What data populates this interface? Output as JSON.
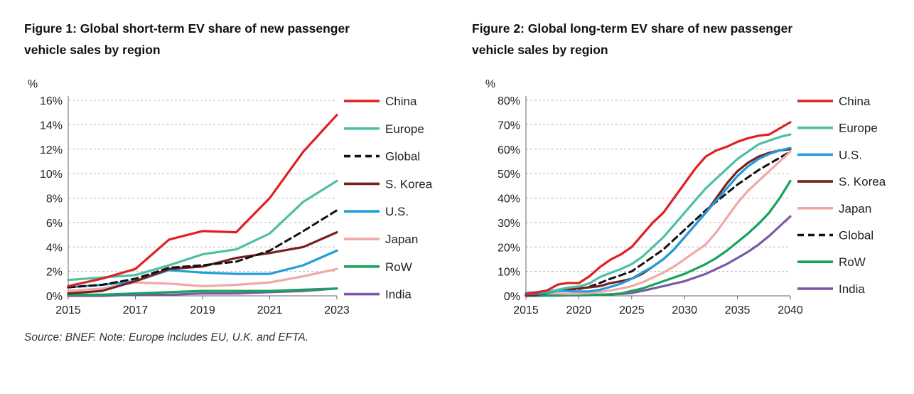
{
  "source_note": "Source: BNEF. Note: Europe includes EU, U.K. and EFTA.",
  "chart_data": [
    {
      "type": "line",
      "title_line1": "Figure 1: Global short-term EV share of new passenger",
      "title_line2": "vehicle sales by region",
      "ylabel": "%",
      "xlim": [
        2015,
        2023
      ],
      "ylim": [
        0,
        16
      ],
      "xticks": [
        2015,
        2017,
        2019,
        2021,
        2023
      ],
      "yticks": [
        0,
        2,
        4,
        6,
        8,
        10,
        12,
        14,
        16
      ],
      "ytick_labels": [
        "0%",
        "2%",
        "4%",
        "6%",
        "8%",
        "10%",
        "12%",
        "14%",
        "16%"
      ],
      "xtick_labels": [
        "2015",
        "2017",
        "2019",
        "2021",
        "2023"
      ],
      "x": [
        2015,
        2016,
        2017,
        2018,
        2019,
        2020,
        2021,
        2022,
        2023
      ],
      "grid": true,
      "series": [
        {
          "name": "China",
          "color": "#e02020",
          "dashed": false,
          "values": [
            0.8,
            1.4,
            2.2,
            4.6,
            5.3,
            5.2,
            8.0,
            11.8,
            14.8
          ]
        },
        {
          "name": "Europe",
          "color": "#4dbfa6",
          "dashed": false,
          "values": [
            1.3,
            1.5,
            1.7,
            2.5,
            3.4,
            3.8,
            5.1,
            7.7,
            9.4
          ]
        },
        {
          "name": "Global",
          "color": "#111111",
          "dashed": true,
          "values": [
            0.7,
            0.9,
            1.4,
            2.3,
            2.5,
            2.8,
            3.7,
            5.3,
            7.0
          ]
        },
        {
          "name": "S. Korea",
          "color": "#7a1f1f",
          "dashed": false,
          "values": [
            0.2,
            0.4,
            1.2,
            2.2,
            2.4,
            3.1,
            3.5,
            4.0,
            5.2
          ]
        },
        {
          "name": "U.S.",
          "color": "#1f9ed8",
          "dashed": false,
          "values": [
            0.7,
            0.9,
            1.2,
            2.1,
            1.9,
            1.8,
            1.8,
            2.5,
            3.7
          ]
        },
        {
          "name": "Japan",
          "color": "#f0a8a8",
          "dashed": false,
          "values": [
            0.4,
            0.6,
            1.1,
            1.0,
            0.8,
            0.9,
            1.1,
            1.6,
            2.2
          ]
        },
        {
          "name": "RoW",
          "color": "#16a35a",
          "dashed": false,
          "values": [
            0.1,
            0.1,
            0.2,
            0.3,
            0.4,
            0.4,
            0.4,
            0.5,
            0.6
          ]
        },
        {
          "name": "India",
          "color": "#7a5aa8",
          "dashed": false,
          "values": [
            0.0,
            0.0,
            0.1,
            0.1,
            0.2,
            0.2,
            0.3,
            0.4,
            0.6
          ]
        }
      ]
    },
    {
      "type": "line",
      "title_line1": "Figure 2: Global long-term EV share of new passenger",
      "title_line2": "vehicle sales by region",
      "ylabel": "%",
      "xlim": [
        2015,
        2040
      ],
      "ylim": [
        0,
        80
      ],
      "xticks": [
        2015,
        2020,
        2025,
        2030,
        2035,
        2040
      ],
      "yticks": [
        0,
        10,
        20,
        30,
        40,
        50,
        60,
        70,
        80
      ],
      "ytick_labels": [
        "0%",
        "10%",
        "20%",
        "30%",
        "40%",
        "50%",
        "60%",
        "70%",
        "80%"
      ],
      "xtick_labels": [
        "2015",
        "2020",
        "2025",
        "2030",
        "2035",
        "2040"
      ],
      "x": [
        2015,
        2016,
        2017,
        2018,
        2019,
        2020,
        2021,
        2022,
        2023,
        2024,
        2025,
        2026,
        2027,
        2028,
        2029,
        2030,
        2031,
        2032,
        2033,
        2034,
        2035,
        2036,
        2037,
        2038,
        2039,
        2040
      ],
      "grid": true,
      "series": [
        {
          "name": "China",
          "color": "#e02020",
          "dashed": false,
          "values": [
            0.8,
            1.4,
            2.2,
            4.6,
            5.3,
            5.2,
            8.0,
            11.8,
            14.8,
            17.0,
            20.0,
            25.0,
            30.0,
            34.0,
            40.0,
            46.0,
            52.0,
            57.0,
            59.5,
            61.0,
            63.0,
            64.5,
            65.5,
            66.0,
            68.5,
            71.0
          ]
        },
        {
          "name": "Europe",
          "color": "#4dbfa6",
          "dashed": false,
          "values": [
            1.3,
            1.5,
            1.7,
            2.5,
            3.4,
            3.8,
            5.1,
            7.7,
            9.4,
            11.0,
            13.0,
            16.0,
            20.0,
            24.0,
            29.0,
            34.0,
            39.0,
            44.0,
            48.0,
            52.0,
            56.0,
            59.0,
            62.0,
            63.5,
            65.0,
            66.0
          ]
        },
        {
          "name": "U.S.",
          "color": "#1f9ed8",
          "dashed": false,
          "values": [
            0.7,
            0.9,
            1.2,
            2.1,
            1.9,
            1.8,
            1.8,
            2.5,
            3.7,
            5.0,
            7.0,
            9.5,
            12.0,
            15.0,
            19.0,
            24.0,
            29.0,
            34.0,
            39.0,
            44.0,
            49.0,
            53.0,
            56.0,
            58.0,
            59.5,
            60.5
          ]
        },
        {
          "name": "S. Korea",
          "color": "#7a1f1f",
          "dashed": false,
          "values": [
            0.2,
            0.4,
            1.2,
            2.2,
            2.4,
            3.1,
            3.5,
            4.0,
            5.2,
            6.0,
            7.0,
            9.0,
            12.0,
            15.0,
            19.0,
            24.0,
            29.0,
            34.0,
            40.0,
            46.0,
            51.0,
            54.5,
            57.0,
            58.5,
            59.5,
            60.0
          ]
        },
        {
          "name": "Japan",
          "color": "#f0a8a8",
          "dashed": false,
          "values": [
            0.4,
            0.6,
            1.1,
            1.0,
            0.8,
            0.9,
            1.1,
            1.6,
            2.2,
            3.0,
            4.0,
            5.5,
            7.5,
            9.5,
            12.0,
            15.0,
            18.0,
            21.0,
            26.0,
            32.0,
            38.0,
            43.0,
            47.0,
            51.0,
            55.0,
            59.0
          ]
        },
        {
          "name": "Global",
          "color": "#111111",
          "dashed": true,
          "values": [
            0.7,
            0.9,
            1.4,
            2.3,
            2.5,
            2.8,
            3.7,
            5.3,
            7.0,
            8.5,
            10.0,
            13.0,
            16.0,
            19.0,
            23.0,
            27.0,
            31.0,
            35.0,
            38.5,
            42.0,
            45.5,
            48.5,
            51.5,
            54.0,
            56.5,
            59.0
          ]
        },
        {
          "name": "RoW",
          "color": "#16a35a",
          "dashed": false,
          "values": [
            0.1,
            0.1,
            0.2,
            0.3,
            0.4,
            0.4,
            0.4,
            0.5,
            0.6,
            1.0,
            2.0,
            3.0,
            4.5,
            6.0,
            7.5,
            9.0,
            11.0,
            13.0,
            15.5,
            18.5,
            22.0,
            25.5,
            29.5,
            34.0,
            40.0,
            47.0
          ]
        },
        {
          "name": "India",
          "color": "#7a5aa8",
          "dashed": false,
          "values": [
            0.0,
            0.0,
            0.1,
            0.1,
            0.2,
            0.2,
            0.3,
            0.4,
            0.6,
            0.8,
            1.2,
            2.0,
            3.0,
            4.0,
            5.0,
            6.0,
            7.5,
            9.0,
            11.0,
            13.0,
            15.5,
            18.0,
            21.0,
            24.5,
            28.5,
            32.5
          ]
        }
      ]
    }
  ]
}
